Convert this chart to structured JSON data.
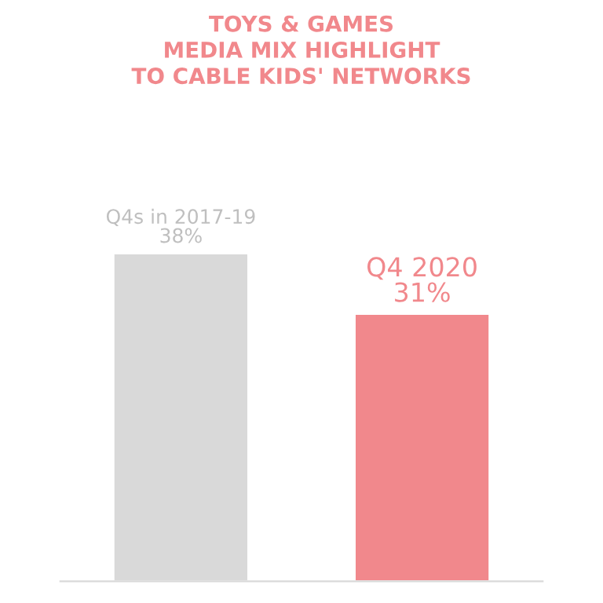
{
  "chart_data": {
    "type": "bar",
    "title": "TOYS & GAMES\nMEDIA MIX HIGHLIGHT\nTO CABLE KIDS' NETWORKS",
    "categories": [
      "Q4s in 2017-19",
      "Q4 2020"
    ],
    "values": [
      38,
      31
    ],
    "colors": [
      "#d9d9d9",
      "#f1888c"
    ],
    "value_labels": [
      "38%",
      "31%"
    ]
  }
}
